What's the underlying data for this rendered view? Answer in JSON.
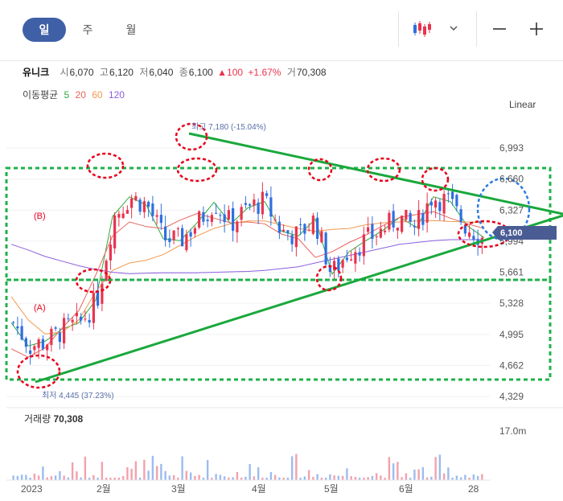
{
  "tabs": {
    "day": "일",
    "week": "주",
    "month": "월"
  },
  "stock": {
    "name": "유니크",
    "open_label": "시",
    "open": "6,070",
    "high_label": "고",
    "high": "6,120",
    "low_label": "저",
    "low": "6,040",
    "close_label": "종",
    "close": "6,100",
    "change_arrow": "▲",
    "change": "100",
    "change_pct": "+1.67%",
    "volume_label": "거",
    "volume": "70,308"
  },
  "ma": {
    "label": "이동평균",
    "periods": [
      "5",
      "20",
      "60",
      "120"
    ],
    "colors": [
      "#2eaa3c",
      "#e8635b",
      "#f09a50",
      "#8c5fe0"
    ]
  },
  "scale_label": "Linear",
  "volume_panel": {
    "label": "거래량",
    "value": "70,308",
    "axis_max": "17.0m"
  },
  "icons": {
    "chart_type": "candlestick-icon",
    "dropdown": "chevron-down-icon",
    "zoom_out": "minus-icon",
    "zoom_in": "plus-icon"
  },
  "colors": {
    "up": "#e8344e",
    "down": "#2f6fe0",
    "trendline": "#1aa83c",
    "box": "#1fb04a",
    "marker": "#e8001a",
    "forecast_marker": "#2b7de0",
    "price_tag": "#4a5c94",
    "tab_active": "#3f5fa6"
  },
  "chart_data": {
    "type": "candlestick",
    "y_ticks": [
      "6,993",
      "6,660",
      "6,327",
      "5,994",
      "5,661",
      "5,328",
      "4,995",
      "4,662",
      "4,329"
    ],
    "ylim": [
      4329,
      7220
    ],
    "x_ticks": [
      "2023",
      "2월",
      "3월",
      "4월",
      "5월",
      "6월",
      "28"
    ],
    "current_price": "6,100",
    "annotations": {
      "high": "최고 7,180 (-15.04%)",
      "low": "최저 4,445 (37.23%)",
      "zone_b": "(B)",
      "zone_a": "(A)"
    },
    "ma_lines": [
      {
        "period": "5",
        "values": [
          5120,
          4870,
          4920,
          5050,
          5120,
          5360,
          6260,
          6470,
          6380,
          6020,
          6000,
          6190,
          6410,
          6180,
          6350,
          6420,
          6100,
          6050,
          6230,
          5640,
          5880,
          6000,
          6110,
          6250,
          6140,
          6470,
          6420,
          6160,
          6030
        ]
      },
      {
        "period": "20",
        "values": [
          4840,
          4750,
          4850,
          5060,
          5250,
          5630,
          6050,
          6200,
          6150,
          6130,
          6220,
          6290,
          6240,
          6190,
          6200,
          6180,
          6070,
          6020,
          5820,
          5880,
          5980,
          6060,
          6160,
          6250,
          6280,
          6310,
          6240,
          6180,
          6130
        ]
      },
      {
        "period": "60",
        "values": [
          5400,
          5150,
          5000,
          5020,
          5150,
          5450,
          5680,
          5760,
          5790,
          5850,
          5950,
          6050,
          6130,
          6180,
          6210,
          6210,
          6170,
          6130,
          6100,
          6120,
          6130,
          6170,
          6190,
          6200,
          6210,
          6215,
          6205,
          6200,
          6190
        ]
      },
      {
        "period": "120",
        "values": [
          5960,
          5900,
          5830,
          5780,
          5730,
          5690,
          5660,
          5645,
          5650,
          5655,
          5655,
          5655,
          5660,
          5665,
          5670,
          5680,
          5700,
          5720,
          5760,
          5800,
          5840,
          5880,
          5920,
          5960,
          5980,
          6000,
          6010,
          6010,
          6010
        ]
      }
    ]
  }
}
